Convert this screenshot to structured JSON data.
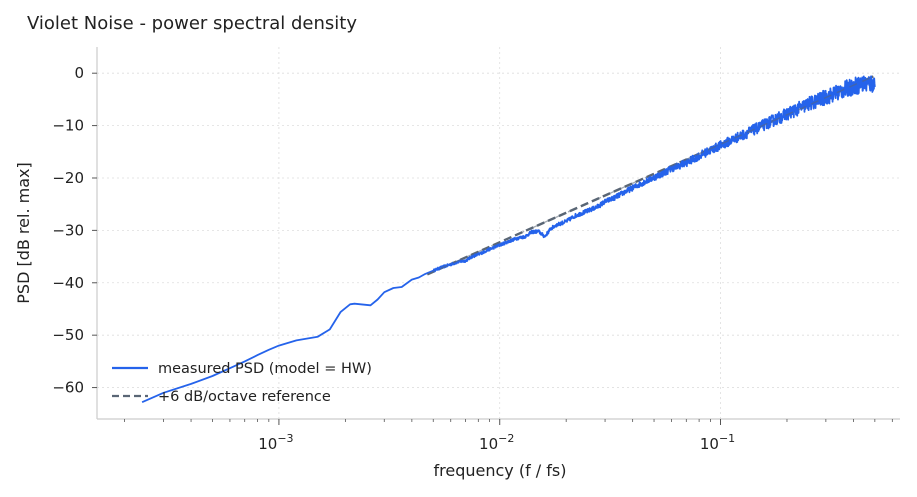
{
  "chart_data": {
    "type": "line",
    "title": "Violet Noise - power spectral density",
    "xlabel": "frequency  (f / fs)",
    "ylabel": "PSD  [dB rel. max]",
    "x_scale": "log",
    "xlim": [
      0.00015,
      0.65
    ],
    "ylim": [
      -66,
      5
    ],
    "x_ticks": [
      {
        "value": 0.001,
        "base": "10",
        "exp": "−3"
      },
      {
        "value": 0.01,
        "base": "10",
        "exp": "−2"
      },
      {
        "value": 0.1,
        "base": "10",
        "exp": "−1"
      }
    ],
    "y_ticks": [
      {
        "value": 0,
        "label": "0"
      },
      {
        "value": -10,
        "label": "−10"
      },
      {
        "value": -20,
        "label": "−20"
      },
      {
        "value": -30,
        "label": "−30"
      },
      {
        "value": -40,
        "label": "−40"
      },
      {
        "value": -50,
        "label": "−50"
      },
      {
        "value": -60,
        "label": "−60"
      }
    ],
    "grid": true,
    "legend_position": "lower-left",
    "series": [
      {
        "name": "measured PSD (model = HW)",
        "color": "#2563eb",
        "style": "solid",
        "points": [
          [
            0.00024,
            -62.8
          ],
          [
            0.0003,
            -61.0
          ],
          [
            0.0004,
            -59.3
          ],
          [
            0.0005,
            -57.8
          ],
          [
            0.0006,
            -56.3
          ],
          [
            0.0007,
            -55.0
          ],
          [
            0.0008,
            -53.8
          ],
          [
            0.0009,
            -52.8
          ],
          [
            0.001,
            -52.0
          ],
          [
            0.0012,
            -51.0
          ],
          [
            0.0015,
            -50.3
          ],
          [
            0.0017,
            -48.9
          ],
          [
            0.0019,
            -45.6
          ],
          [
            0.0021,
            -44.1
          ],
          [
            0.0022,
            -44.0
          ],
          [
            0.0026,
            -44.3
          ],
          [
            0.0028,
            -43.2
          ],
          [
            0.003,
            -41.8
          ],
          [
            0.0033,
            -41.0
          ],
          [
            0.0036,
            -40.8
          ],
          [
            0.004,
            -39.4
          ],
          [
            0.0043,
            -39.0
          ],
          [
            0.0046,
            -38.3
          ],
          [
            0.005,
            -37.7
          ],
          [
            0.0055,
            -37.0
          ],
          [
            0.006,
            -36.5
          ],
          [
            0.0065,
            -36.0
          ],
          [
            0.007,
            -35.8
          ],
          [
            0.0075,
            -35.0
          ],
          [
            0.008,
            -34.6
          ],
          [
            0.009,
            -33.6
          ],
          [
            0.01,
            -32.8
          ],
          [
            0.011,
            -32.1
          ],
          [
            0.012,
            -31.5
          ],
          [
            0.013,
            -31.2
          ],
          [
            0.014,
            -30.3
          ],
          [
            0.015,
            -30.2
          ],
          [
            0.016,
            -31.2
          ],
          [
            0.017,
            -29.7
          ],
          [
            0.018,
            -29.0
          ],
          [
            0.02,
            -28.3
          ],
          [
            0.022,
            -27.2
          ],
          [
            0.025,
            -26.3
          ],
          [
            0.028,
            -25.4
          ],
          [
            0.03,
            -24.5
          ],
          [
            0.033,
            -23.8
          ],
          [
            0.036,
            -22.9
          ],
          [
            0.04,
            -21.9
          ],
          [
            0.045,
            -20.8
          ],
          [
            0.05,
            -19.9
          ],
          [
            0.055,
            -19.1
          ],
          [
            0.06,
            -18.2
          ],
          [
            0.07,
            -17.1
          ],
          [
            0.08,
            -15.8
          ],
          [
            0.09,
            -14.7
          ],
          [
            0.1,
            -13.8
          ],
          [
            0.12,
            -12.2
          ],
          [
            0.14,
            -10.9
          ],
          [
            0.17,
            -9.2
          ],
          [
            0.2,
            -7.8
          ],
          [
            0.25,
            -5.9
          ],
          [
            0.3,
            -4.6
          ],
          [
            0.35,
            -3.4
          ],
          [
            0.4,
            -2.5
          ],
          [
            0.45,
            -2.0
          ],
          [
            0.5,
            -2.0
          ]
        ]
      },
      {
        "name": "+6 dB/octave reference",
        "color": "#5a6675",
        "style": "dashed",
        "points": [
          [
            0.0047,
            -38.4
          ],
          [
            0.5,
            -0.5
          ]
        ]
      }
    ]
  }
}
